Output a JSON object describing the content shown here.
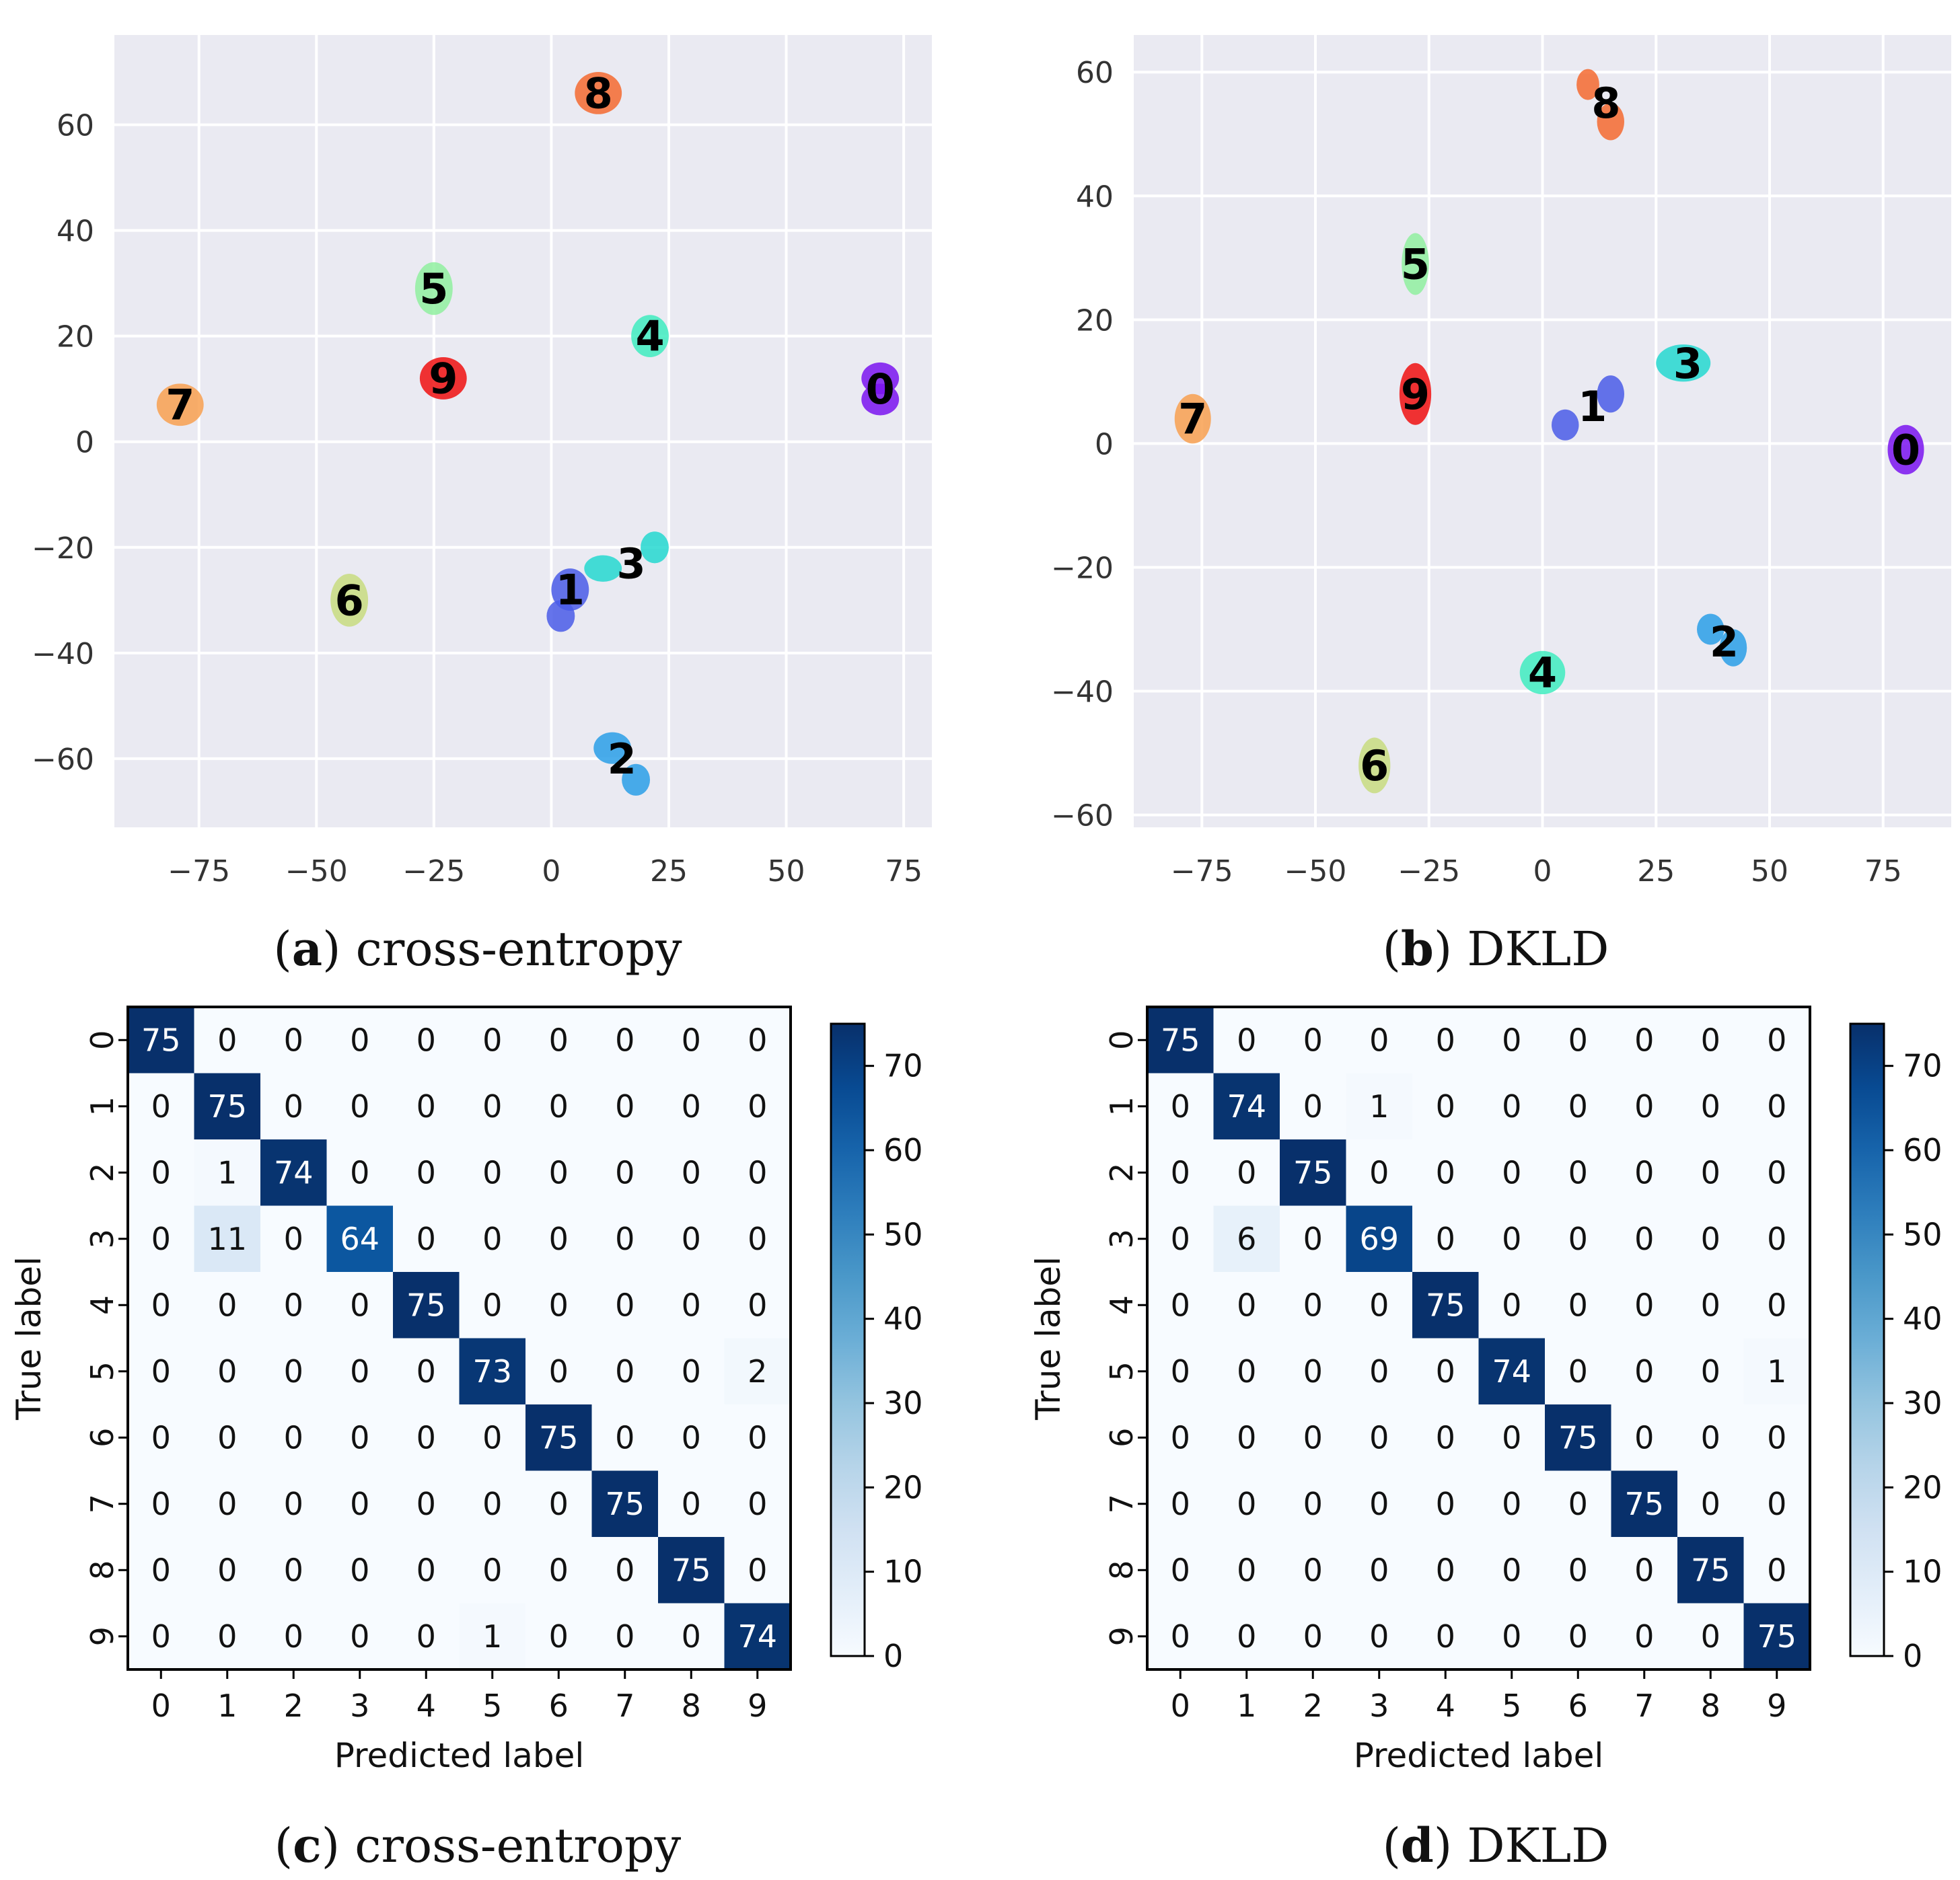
{
  "chart_data": [
    {
      "type": "scatter",
      "panel": "a",
      "caption_letter": "a",
      "caption_text": "cross-entropy",
      "xlim": [
        -93,
        81
      ],
      "ylim": [
        -73,
        77
      ],
      "xticks": [
        -75,
        -50,
        -25,
        0,
        25,
        50,
        75
      ],
      "xtick_labels": [
        "−75",
        "−50",
        "−25",
        "0",
        "25",
        "50",
        "75"
      ],
      "yticks": [
        -60,
        -40,
        -20,
        0,
        20,
        40,
        60
      ],
      "ytick_labels": [
        "−60",
        "−40",
        "−20",
        "0",
        "20",
        "40",
        "60"
      ],
      "grid": true,
      "clusters": [
        {
          "label": "0",
          "x": 70,
          "y": 10,
          "color": "#7a14f0",
          "blobs": [
            [
              70,
              12,
              4,
              3
            ],
            [
              70,
              8,
              4,
              3
            ]
          ]
        },
        {
          "label": "1",
          "x": 4,
          "y": -28,
          "color": "#4a5ce8",
          "blobs": [
            [
              4,
              -28,
              4,
              4
            ],
            [
              2,
              -33,
              3,
              3
            ]
          ]
        },
        {
          "label": "2",
          "x": 15,
          "y": -60,
          "color": "#2a9fe8",
          "blobs": [
            [
              13,
              -58,
              4,
              3
            ],
            [
              18,
              -64,
              3,
              3
            ]
          ]
        },
        {
          "label": "3",
          "x": 17,
          "y": -23,
          "color": "#24d8d0",
          "blobs": [
            [
              11,
              -24,
              4,
              2.5
            ],
            [
              22,
              -20,
              3,
              3
            ]
          ]
        },
        {
          "label": "4",
          "x": 21,
          "y": 20,
          "color": "#40ecc0",
          "blobs": [
            [
              21,
              20,
              4,
              4
            ]
          ]
        },
        {
          "label": "5",
          "x": -25,
          "y": 29,
          "color": "#90f0a0",
          "blobs": [
            [
              -25,
              29,
              4,
              5
            ]
          ]
        },
        {
          "label": "6",
          "x": -43,
          "y": -30,
          "color": "#c8dc80",
          "blobs": [
            [
              -43,
              -30,
              4,
              5
            ]
          ]
        },
        {
          "label": "7",
          "x": -79,
          "y": 7,
          "color": "#f8a050",
          "blobs": [
            [
              -79,
              7,
              5,
              4
            ]
          ]
        },
        {
          "label": "8",
          "x": 10,
          "y": 66,
          "color": "#f46a30",
          "blobs": [
            [
              10,
              66,
              5,
              4
            ]
          ]
        },
        {
          "label": "9",
          "x": -23,
          "y": 12,
          "color": "#f01010",
          "blobs": [
            [
              -23,
              12,
              5,
              4
            ]
          ]
        }
      ]
    },
    {
      "type": "scatter",
      "panel": "b",
      "caption_letter": "b",
      "caption_text": "DKLD",
      "xlim": [
        -90,
        90
      ],
      "ylim": [
        -62,
        66
      ],
      "xticks": [
        -75,
        -50,
        -25,
        0,
        25,
        50,
        75
      ],
      "xtick_labels": [
        "−75",
        "−50",
        "−25",
        "0",
        "25",
        "50",
        "75"
      ],
      "yticks": [
        -60,
        -40,
        -20,
        0,
        20,
        40,
        60
      ],
      "ytick_labels": [
        "−60",
        "−40",
        "−20",
        "0",
        "20",
        "40",
        "60"
      ],
      "grid": true,
      "clusters": [
        {
          "label": "0",
          "x": 80,
          "y": -1,
          "color": "#7a14f0",
          "blobs": [
            [
              80,
              -1,
              4,
              4
            ]
          ]
        },
        {
          "label": "1",
          "x": 11,
          "y": 6,
          "color": "#4a5ce8",
          "blobs": [
            [
              15,
              8,
              3,
              3
            ],
            [
              5,
              3,
              3,
              2.5
            ]
          ]
        },
        {
          "label": "2",
          "x": 40,
          "y": -32,
          "color": "#2a9fe8",
          "blobs": [
            [
              37,
              -30,
              3,
              2.5
            ],
            [
              42,
              -33,
              3,
              3
            ]
          ]
        },
        {
          "label": "3",
          "x": 32,
          "y": 13,
          "color": "#24d8d0",
          "blobs": [
            [
              31,
              13,
              6,
              3
            ]
          ]
        },
        {
          "label": "4",
          "x": 0,
          "y": -37,
          "color": "#40ecc0",
          "blobs": [
            [
              0,
              -37,
              5,
              3.5
            ]
          ]
        },
        {
          "label": "5",
          "x": -28,
          "y": 29,
          "color": "#90f0a0",
          "blobs": [
            [
              -28,
              29,
              3,
              5
            ]
          ]
        },
        {
          "label": "6",
          "x": -37,
          "y": -52,
          "color": "#c8dc80",
          "blobs": [
            [
              -37,
              -52,
              3.5,
              4.5
            ]
          ]
        },
        {
          "label": "7",
          "x": -77,
          "y": 4,
          "color": "#f8a050",
          "blobs": [
            [
              -77,
              4,
              4,
              4
            ]
          ]
        },
        {
          "label": "8",
          "x": 14,
          "y": 55,
          "color": "#f46a30",
          "blobs": [
            [
              10,
              58,
              2.5,
              2.5
            ],
            [
              15,
              52,
              3,
              3
            ]
          ]
        },
        {
          "label": "9",
          "x": -28,
          "y": 8,
          "color": "#f01010",
          "blobs": [
            [
              -28,
              8,
              3.5,
              5
            ]
          ]
        }
      ]
    },
    {
      "type": "heatmap",
      "panel": "c",
      "caption_letter": "c",
      "caption_text": "cross-entropy",
      "xlabel": "Predicted label",
      "ylabel": "True label",
      "classes": [
        "0",
        "1",
        "2",
        "3",
        "4",
        "5",
        "6",
        "7",
        "8",
        "9"
      ],
      "matrix": [
        [
          75,
          0,
          0,
          0,
          0,
          0,
          0,
          0,
          0,
          0
        ],
        [
          0,
          75,
          0,
          0,
          0,
          0,
          0,
          0,
          0,
          0
        ],
        [
          0,
          1,
          74,
          0,
          0,
          0,
          0,
          0,
          0,
          0
        ],
        [
          0,
          11,
          0,
          64,
          0,
          0,
          0,
          0,
          0,
          0
        ],
        [
          0,
          0,
          0,
          0,
          75,
          0,
          0,
          0,
          0,
          0
        ],
        [
          0,
          0,
          0,
          0,
          0,
          73,
          0,
          0,
          0,
          2
        ],
        [
          0,
          0,
          0,
          0,
          0,
          0,
          75,
          0,
          0,
          0
        ],
        [
          0,
          0,
          0,
          0,
          0,
          0,
          0,
          75,
          0,
          0
        ],
        [
          0,
          0,
          0,
          0,
          0,
          0,
          0,
          0,
          75,
          0
        ],
        [
          0,
          0,
          0,
          0,
          0,
          1,
          0,
          0,
          0,
          74
        ]
      ],
      "vmin": 0,
      "vmax": 75,
      "colorbar_ticks": [
        "0",
        "10",
        "20",
        "30",
        "40",
        "50",
        "60",
        "70"
      ]
    },
    {
      "type": "heatmap",
      "panel": "d",
      "caption_letter": "d",
      "caption_text": "DKLD",
      "xlabel": "Predicted label",
      "ylabel": "True label",
      "classes": [
        "0",
        "1",
        "2",
        "3",
        "4",
        "5",
        "6",
        "7",
        "8",
        "9"
      ],
      "matrix": [
        [
          75,
          0,
          0,
          0,
          0,
          0,
          0,
          0,
          0,
          0
        ],
        [
          0,
          74,
          0,
          1,
          0,
          0,
          0,
          0,
          0,
          0
        ],
        [
          0,
          0,
          75,
          0,
          0,
          0,
          0,
          0,
          0,
          0
        ],
        [
          0,
          6,
          0,
          69,
          0,
          0,
          0,
          0,
          0,
          0
        ],
        [
          0,
          0,
          0,
          0,
          75,
          0,
          0,
          0,
          0,
          0
        ],
        [
          0,
          0,
          0,
          0,
          0,
          74,
          0,
          0,
          0,
          1
        ],
        [
          0,
          0,
          0,
          0,
          0,
          0,
          75,
          0,
          0,
          0
        ],
        [
          0,
          0,
          0,
          0,
          0,
          0,
          0,
          75,
          0,
          0
        ],
        [
          0,
          0,
          0,
          0,
          0,
          0,
          0,
          0,
          75,
          0
        ],
        [
          0,
          0,
          0,
          0,
          0,
          0,
          0,
          0,
          0,
          75
        ]
      ],
      "vmin": 0,
      "vmax": 75,
      "colorbar_ticks": [
        "0",
        "10",
        "20",
        "30",
        "40",
        "50",
        "60",
        "70"
      ]
    }
  ]
}
